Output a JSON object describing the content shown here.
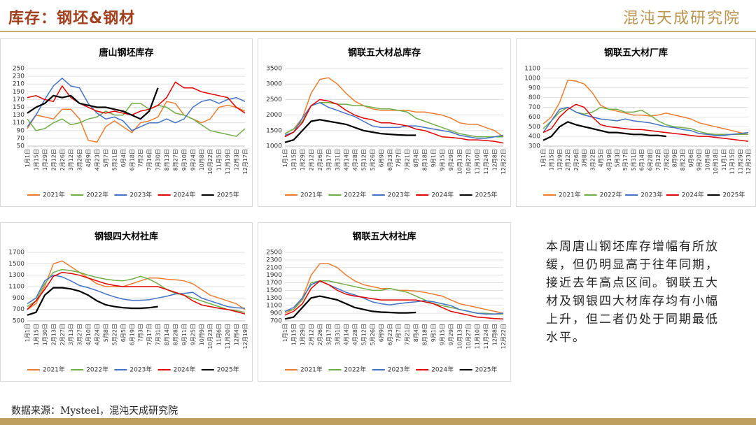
{
  "header": {
    "title": "库存：钢坯&钢材",
    "logo": "混沌天成研究院"
  },
  "commentary": "本周唐山钢坯库存增幅有所放缓，但仍明显高于往年同期，接近去年高点区间。钢联五大材及钢银四大材库存均有小幅上升，但二者仍处于同期最低水平。",
  "source": "数据来源：Mysteel，混沌天成研究院",
  "chart_data": [
    {
      "type": "line",
      "title": "唐山钢坯库存",
      "grid": true,
      "legend": "bottom",
      "categories": [
        "1月1日",
        "1月15日",
        "1月29日",
        "2月12日",
        "2月26日",
        "3月12日",
        "3月26日",
        "4月9日",
        "4月23日",
        "5月7日",
        "5月21日",
        "6月4日",
        "6月18日",
        "7月2日",
        "7月16日",
        "7月30日",
        "8月13日",
        "8月27日",
        "9月10日",
        "9月24日",
        "10月8日",
        "10月22日",
        "11月5日",
        "11月19日",
        "12月3日",
        "12月17日"
      ],
      "ylim": [
        50,
        250
      ],
      "yticks": [
        50,
        70,
        90,
        110,
        130,
        150,
        170,
        190,
        210,
        230,
        250
      ],
      "series": [
        {
          "name": "2021年",
          "color": "#ed7d31",
          "values": [
            95,
            130,
            125,
            120,
            145,
            145,
            120,
            65,
            60,
            100,
            115,
            100,
            85,
            110,
            115,
            125,
            165,
            160,
            130,
            120,
            110,
            120,
            150,
            155,
            150,
            140
          ]
        },
        {
          "name": "2022年",
          "color": "#70ad47",
          "values": [
            120,
            90,
            95,
            110,
            120,
            105,
            110,
            120,
            125,
            140,
            130,
            130,
            160,
            160,
            145,
            155,
            150,
            135,
            130,
            120,
            105,
            90,
            85,
            80,
            75,
            95
          ]
        },
        {
          "name": "2023年",
          "color": "#4472c4",
          "values": [
            100,
            130,
            170,
            205,
            225,
            205,
            200,
            160,
            135,
            120,
            125,
            115,
            90,
            100,
            110,
            110,
            120,
            110,
            120,
            150,
            165,
            170,
            160,
            170,
            175,
            165
          ]
        },
        {
          "name": "2024年",
          "color": "#e00000",
          "values": [
            175,
            180,
            170,
            165,
            205,
            175,
            160,
            150,
            140,
            135,
            140,
            135,
            130,
            140,
            145,
            155,
            175,
            215,
            200,
            200,
            190,
            185,
            180,
            175,
            150,
            135
          ]
        },
        {
          "name": "2025年",
          "color": "#000000",
          "values": [
            135,
            150,
            160,
            180,
            175,
            180,
            160,
            155,
            150,
            150,
            145,
            140,
            130,
            120,
            140,
            200,
            null,
            null,
            null,
            null,
            null,
            null,
            null,
            null,
            null,
            null
          ]
        }
      ]
    },
    {
      "type": "line",
      "title": "钢联五大材总库存",
      "grid": true,
      "legend": "bottom",
      "categories": [
        "1月1日",
        "1月15日",
        "1月29日",
        "2月12日",
        "2月26日",
        "3月17日",
        "3月31日",
        "4月14日",
        "4月28日",
        "5月12日",
        "5月26日",
        "6月9日",
        "6月23日",
        "7月7日",
        "7月21日",
        "8月4日",
        "8月18日",
        "9月1日",
        "9月15日",
        "9月29日",
        "10月13日",
        "10月27日",
        "11月10日",
        "11月24日",
        "12月8日",
        "12月22日"
      ],
      "ylim": [
        1000,
        3500
      ],
      "yticks": [
        1000,
        1500,
        2000,
        2500,
        3000,
        3500
      ],
      "series": [
        {
          "name": "2021年",
          "color": "#ed7d31",
          "values": [
            1400,
            1550,
            1900,
            2700,
            3150,
            3200,
            3000,
            2700,
            2450,
            2300,
            2200,
            2150,
            2150,
            2150,
            2150,
            2100,
            2100,
            2050,
            2000,
            1900,
            1750,
            1700,
            1700,
            1600,
            1500,
            1300
          ]
        },
        {
          "name": "2022年",
          "color": "#70ad47",
          "values": [
            1400,
            1550,
            1800,
            2300,
            2400,
            2400,
            2350,
            2350,
            2300,
            2300,
            2250,
            2200,
            2200,
            2150,
            2100,
            1900,
            1800,
            1700,
            1600,
            1500,
            1400,
            1350,
            1300,
            1300,
            1300,
            1300
          ]
        },
        {
          "name": "2023年",
          "color": "#4472c4",
          "values": [
            1350,
            1450,
            1900,
            2300,
            2400,
            2250,
            2150,
            2050,
            1950,
            1800,
            1650,
            1600,
            1600,
            1600,
            1650,
            1650,
            1600,
            1550,
            1500,
            1450,
            1350,
            1300,
            1250,
            1250,
            1300,
            1350
          ]
        },
        {
          "name": "2024年",
          "color": "#e00000",
          "values": [
            1300,
            1450,
            1750,
            2300,
            2500,
            2450,
            2350,
            2150,
            2000,
            1900,
            1850,
            1750,
            1750,
            1700,
            1650,
            1550,
            1500,
            1400,
            1300,
            1280,
            1250,
            1200,
            1200,
            1180,
            1150,
            1100
          ]
        },
        {
          "name": "2025年",
          "color": "#000000",
          "values": [
            1120,
            1200,
            1500,
            1800,
            1850,
            1800,
            1750,
            1700,
            1600,
            1500,
            1450,
            1400,
            1380,
            1360,
            1350,
            1350,
            null,
            null,
            null,
            null,
            null,
            null,
            null,
            null,
            null,
            null
          ]
        }
      ]
    },
    {
      "type": "line",
      "title": "钢联五大材厂库",
      "grid": true,
      "legend": "bottom",
      "categories": [
        "1月1日",
        "1月15日",
        "1月29日",
        "2月12日",
        "2月26日",
        "3月8日",
        "3月22日",
        "4月5日",
        "4月19日",
        "5月3日",
        "5月17日",
        "5月31日",
        "6月14日",
        "6月28日",
        "7月12日",
        "7月26日",
        "8月9日",
        "8月23日",
        "9月6日",
        "9月20日",
        "10月4日",
        "10月18日",
        "11月1日",
        "11月15日",
        "11月29日",
        "12月23日"
      ],
      "ylim": [
        300,
        1100
      ],
      "yticks": [
        300,
        400,
        500,
        600,
        700,
        800,
        900,
        1000,
        1100
      ],
      "series": [
        {
          "name": "2021年",
          "color": "#ed7d31",
          "values": [
            530,
            600,
            750,
            980,
            970,
            940,
            850,
            720,
            680,
            660,
            640,
            620,
            620,
            610,
            620,
            640,
            620,
            600,
            580,
            540,
            520,
            500,
            480,
            460,
            440,
            420
          ]
        },
        {
          "name": "2022年",
          "color": "#70ad47",
          "values": [
            480,
            560,
            650,
            700,
            650,
            630,
            650,
            700,
            680,
            680,
            650,
            650,
            670,
            620,
            560,
            520,
            500,
            490,
            480,
            450,
            430,
            420,
            420,
            420,
            420,
            420
          ]
        },
        {
          "name": "2023年",
          "color": "#4472c4",
          "values": [
            440,
            560,
            680,
            700,
            650,
            620,
            600,
            580,
            570,
            560,
            580,
            560,
            550,
            540,
            520,
            500,
            490,
            470,
            460,
            430,
            420,
            410,
            410,
            420,
            430,
            440
          ]
        },
        {
          "name": "2024年",
          "color": "#e00000",
          "values": [
            440,
            480,
            600,
            680,
            730,
            700,
            600,
            520,
            500,
            490,
            480,
            470,
            470,
            460,
            450,
            440,
            430,
            420,
            410,
            400,
            400,
            390,
            380,
            370,
            360,
            350
          ]
        },
        {
          "name": "2025年",
          "color": "#000000",
          "values": [
            360,
            400,
            500,
            550,
            520,
            500,
            480,
            460,
            440,
            440,
            430,
            420,
            420,
            410,
            410,
            400,
            null,
            null,
            null,
            null,
            null,
            null,
            null,
            null,
            null,
            null
          ]
        }
      ]
    },
    {
      "type": "line",
      "title": "钢银四大材社库",
      "grid": true,
      "legend": "bottom",
      "categories": [
        "1月1日",
        "1月15日",
        "1月30日",
        "2月13日",
        "2月27日",
        "3月13日",
        "3月27日",
        "4月10日",
        "4月24日",
        "5月8日",
        "5月22日",
        "6月5日",
        "6月19日",
        "7月3日",
        "7月17日",
        "7月31日",
        "8月14日",
        "8月28日",
        "9月11日",
        "9月25日",
        "10月9日",
        "10月23日",
        "11月6日",
        "11月20日",
        "12月4日",
        "12月19日"
      ],
      "ylim": [
        500,
        1700
      ],
      "yticks": [
        500,
        700,
        900,
        1100,
        1300,
        1500,
        1700
      ],
      "series": [
        {
          "name": "2021年",
          "color": "#ed7d31",
          "values": [
            700,
            800,
            1100,
            1500,
            1550,
            1450,
            1350,
            1250,
            1150,
            1100,
            1100,
            1100,
            1150,
            1200,
            1250,
            1250,
            1230,
            1220,
            1200,
            1150,
            1050,
            950,
            900,
            850,
            800,
            700
          ]
        },
        {
          "name": "2022年",
          "color": "#70ad47",
          "values": [
            750,
            850,
            1150,
            1350,
            1400,
            1380,
            1350,
            1300,
            1260,
            1230,
            1210,
            1200,
            1230,
            1280,
            1230,
            1150,
            1050,
            980,
            950,
            900,
            850,
            800,
            750,
            700,
            680,
            650
          ]
        },
        {
          "name": "2023年",
          "color": "#4472c4",
          "values": [
            800,
            900,
            1200,
            1300,
            1270,
            1200,
            1120,
            1080,
            1030,
            970,
            920,
            880,
            860,
            860,
            870,
            900,
            930,
            970,
            980,
            1000,
            900,
            850,
            800,
            750,
            730,
            720
          ]
        },
        {
          "name": "2024年",
          "color": "#e00000",
          "values": [
            700,
            850,
            1050,
            1280,
            1350,
            1330,
            1300,
            1250,
            1200,
            1150,
            1120,
            1100,
            1100,
            1100,
            1100,
            1100,
            1050,
            1000,
            950,
            850,
            780,
            750,
            720,
            700,
            660,
            620
          ]
        },
        {
          "name": "2025年",
          "color": "#000000",
          "values": [
            600,
            650,
            950,
            1080,
            1080,
            1060,
            1020,
            950,
            850,
            780,
            750,
            730,
            720,
            720,
            730,
            750,
            null,
            null,
            null,
            null,
            null,
            null,
            null,
            null,
            null,
            null
          ]
        }
      ]
    },
    {
      "type": "line",
      "title": "钢联五大材社库",
      "grid": true,
      "legend": "bottom",
      "categories": [
        "1月1日",
        "1月15日",
        "1月29日",
        "2月12日",
        "2月26日",
        "3月17日",
        "3月31日",
        "4月14日",
        "4月28日",
        "5月12日",
        "5月26日",
        "6月9日",
        "6月23日",
        "7月7日",
        "7月21日",
        "8月4日",
        "8月18日",
        "9月1日",
        "9月15日",
        "9月29日",
        "10月13日",
        "10月27日",
        "11月10日",
        "11月24日",
        "12月8日",
        "12月22日"
      ],
      "ylim": [
        700,
        2500
      ],
      "yticks": [
        700,
        900,
        1100,
        1300,
        1500,
        1700,
        1900,
        2100,
        2300,
        2500
      ],
      "series": [
        {
          "name": "2021年",
          "color": "#ed7d31",
          "values": [
            900,
            1000,
            1300,
            1900,
            2200,
            2200,
            2100,
            1900,
            1750,
            1650,
            1600,
            1550,
            1550,
            1500,
            1500,
            1480,
            1450,
            1400,
            1350,
            1250,
            1150,
            1100,
            1050,
            1000,
            950,
            900
          ]
        },
        {
          "name": "2022年",
          "color": "#70ad47",
          "values": [
            950,
            1000,
            1250,
            1700,
            1750,
            1750,
            1700,
            1650,
            1600,
            1550,
            1500,
            1500,
            1550,
            1500,
            1450,
            1350,
            1250,
            1150,
            1100,
            1050,
            1000,
            950,
            900,
            900,
            880,
            880
          ]
        },
        {
          "name": "2023年",
          "color": "#4472c4",
          "values": [
            950,
            1050,
            1300,
            1650,
            1750,
            1650,
            1550,
            1450,
            1380,
            1300,
            1200,
            1150,
            1120,
            1150,
            1180,
            1200,
            1230,
            1200,
            1150,
            1100,
            1000,
            950,
            900,
            880,
            880,
            900
          ]
        },
        {
          "name": "2024年",
          "color": "#e00000",
          "values": [
            850,
            950,
            1150,
            1550,
            1750,
            1650,
            1500,
            1400,
            1350,
            1320,
            1280,
            1250,
            1250,
            1250,
            1250,
            1250,
            1200,
            1150,
            1050,
            950,
            900,
            850,
            800,
            780,
            760,
            750
          ]
        },
        {
          "name": "2025年",
          "color": "#000000",
          "values": [
            750,
            800,
            1050,
            1300,
            1350,
            1300,
            1250,
            1150,
            1050,
            1000,
            950,
            930,
            920,
            910,
            910,
            920,
            null,
            null,
            null,
            null,
            null,
            null,
            null,
            null,
            null,
            null
          ]
        }
      ]
    }
  ]
}
